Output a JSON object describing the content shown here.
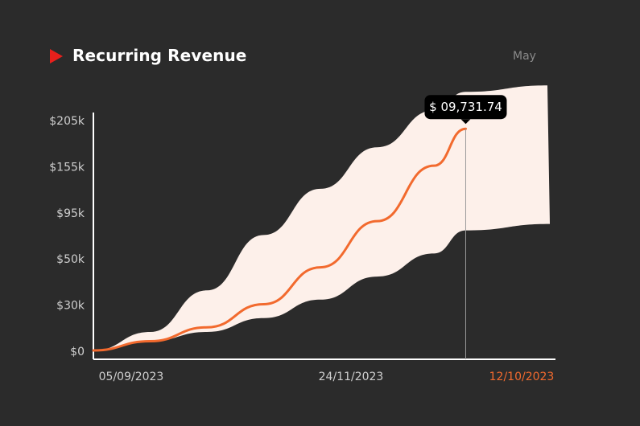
{
  "header": {
    "title": "Recurring Revenue",
    "period_label": "May"
  },
  "colors": {
    "background": "#2b2b2b",
    "line": "#f26a2e",
    "band": "#fdf0ea",
    "icon": "#e8201c",
    "highlight_tick": "#f26a2e"
  },
  "chart_data": {
    "type": "area",
    "title": "Recurring Revenue",
    "y_ticks": [
      "$0",
      "$30k",
      "$50k",
      "$95k",
      "$155k",
      "$205k"
    ],
    "x_ticks": [
      "05/09/2023",
      "24/11/2023",
      "12/10/2023"
    ],
    "highlighted_x_tick": "12/10/2023",
    "series": [
      {
        "type": "line",
        "y": [
          0,
          0.2,
          0.5,
          1.0,
          1.8,
          2.8,
          4.0,
          4.8
        ]
      },
      {
        "type": "band-upper",
        "y": [
          0,
          0.4,
          1.3,
          2.5,
          3.5,
          4.4,
          5.2,
          5.6
        ]
      },
      {
        "type": "band-lower",
        "y": [
          0,
          0.2,
          0.4,
          0.7,
          1.1,
          1.6,
          2.1,
          2.6
        ]
      }
    ],
    "x_positions": [
      0,
      0.125,
      0.25,
      0.375,
      0.5,
      0.625,
      0.75,
      0.82
    ],
    "tooltip": {
      "label": "$ 09,731.74",
      "x_position": 0.82
    },
    "ylim": [
      0,
      5.5
    ],
    "grid": false,
    "legend": "none"
  }
}
